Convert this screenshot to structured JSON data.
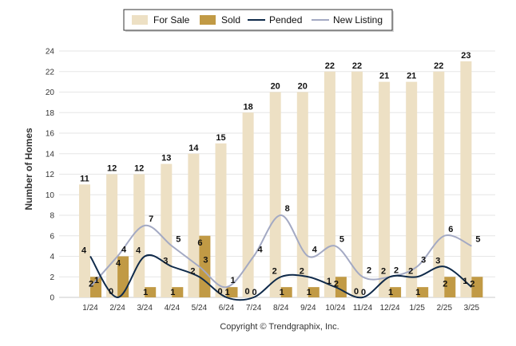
{
  "chart_data": {
    "type": "bar",
    "title": "",
    "xlabel": "",
    "ylabel": "Number of Homes",
    "ylim": [
      0,
      24
    ],
    "yticks": [
      0,
      2,
      4,
      6,
      8,
      10,
      12,
      14,
      16,
      18,
      20,
      22,
      24
    ],
    "grid": true,
    "legend_position": "top-center",
    "categories": [
      "1/24",
      "2/24",
      "3/24",
      "4/24",
      "5/24",
      "6/24",
      "7/24",
      "8/24",
      "9/24",
      "10/24",
      "11/24",
      "12/24",
      "1/25",
      "2/25",
      "3/25"
    ],
    "series": [
      {
        "name": "For Sale",
        "kind": "bar",
        "color": "#ede0c4",
        "values": [
          11,
          12,
          12,
          13,
          14,
          15,
          18,
          20,
          20,
          22,
          22,
          21,
          21,
          22,
          23
        ]
      },
      {
        "name": "Sold",
        "kind": "bar",
        "color": "#c19a45",
        "values": [
          2,
          4,
          1,
          1,
          6,
          1,
          0,
          1,
          1,
          2,
          0,
          1,
          1,
          2,
          2
        ]
      },
      {
        "name": "Pended",
        "kind": "line",
        "color": "#0f2a4a",
        "values": [
          4,
          0,
          4,
          3,
          2,
          0,
          0,
          2,
          2,
          1,
          0,
          2,
          2,
          3,
          1
        ]
      },
      {
        "name": "New Listing",
        "kind": "line",
        "color": "#a3a9c3",
        "values": [
          1,
          4,
          7,
          5,
          3,
          1,
          4,
          8,
          4,
          5,
          2,
          2,
          3,
          6,
          5
        ]
      }
    ]
  },
  "copyright": "Copyright © Trendgraphix, Inc."
}
